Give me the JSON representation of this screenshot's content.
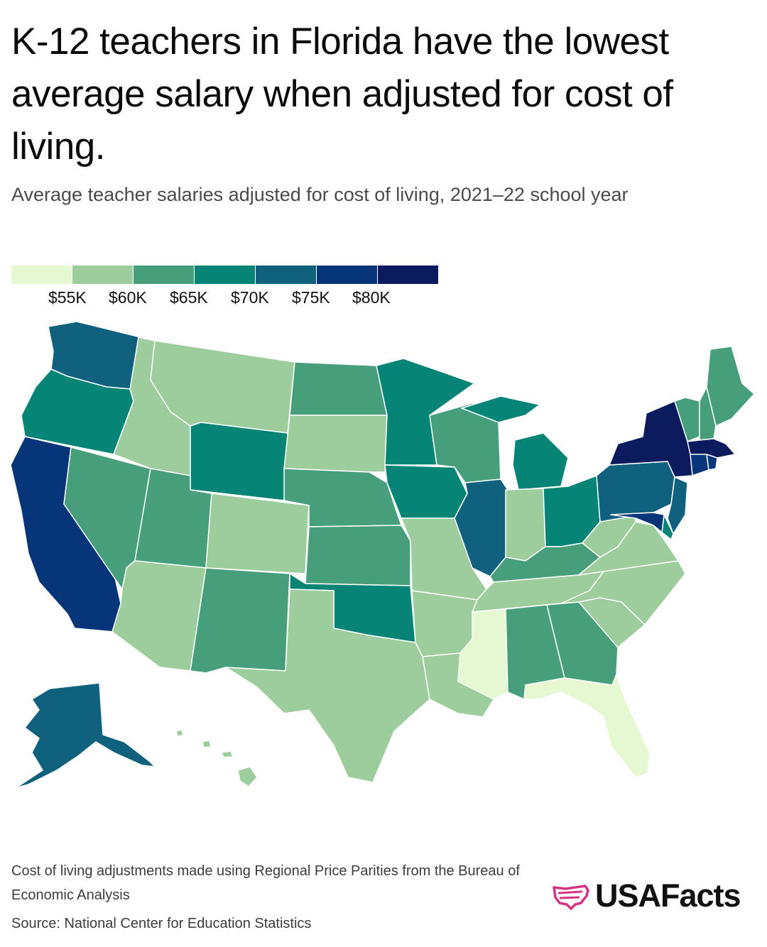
{
  "header": {
    "title": "K-12 teachers in Florida have the lowest average salary when adjusted for cost of living.",
    "subtitle": "Average teacher salaries adjusted for cost of living, 2021–22 school year"
  },
  "legend": {
    "colors": [
      "#e6f8d2",
      "#9dcc9d",
      "#479e7b",
      "#068475",
      "#10617d",
      "#07357a",
      "#0c1a5e"
    ],
    "labels": [
      "$55K",
      "$60K",
      "$65K",
      "$70K",
      "$75K",
      "$80K"
    ]
  },
  "chart_data": {
    "type": "choropleth",
    "bins": [
      {
        "range": "< $55K",
        "color": "#e6f8d2"
      },
      {
        "range": "$55K–$60K",
        "color": "#9dcc9d"
      },
      {
        "range": "$60K–$65K",
        "color": "#479e7b"
      },
      {
        "range": "$65K–$70K",
        "color": "#068475"
      },
      {
        "range": "$70K–$75K",
        "color": "#10617d"
      },
      {
        "range": "$75K–$80K",
        "color": "#07357a"
      },
      {
        "range": "> $80K",
        "color": "#0c1a5e"
      }
    ],
    "state_bins": {
      "WA": 4,
      "OR": 3,
      "CA": 5,
      "NV": 2,
      "ID": 1,
      "MT": 1,
      "WY": 3,
      "UT": 2,
      "AZ": 1,
      "CO": 1,
      "NM": 2,
      "ND": 2,
      "SD": 1,
      "NE": 2,
      "KS": 2,
      "OK": 3,
      "TX": 1,
      "MN": 3,
      "IA": 3,
      "MO": 1,
      "AR": 1,
      "LA": 1,
      "WI": 2,
      "IL": 4,
      "MI": 3,
      "IN": 1,
      "OH": 3,
      "KY": 2,
      "TN": 1,
      "MS": 0,
      "AL": 2,
      "GA": 2,
      "FL": 0,
      "SC": 1,
      "NC": 1,
      "VA": 1,
      "WV": 1,
      "PA": 4,
      "NY": 6,
      "VT": 2,
      "NH": 2,
      "ME": 2,
      "MA": 6,
      "CT": 5,
      "RI": 5,
      "NJ": 4,
      "DE": 3,
      "MD": 5,
      "AK": 4,
      "HI": 1
    }
  },
  "footer": {
    "note": "Cost of living adjustments made using Regional Price Parities from the Bureau of Economic Analysis",
    "source": "Source: National Center for Education Statistics",
    "brand": "USAFacts"
  }
}
